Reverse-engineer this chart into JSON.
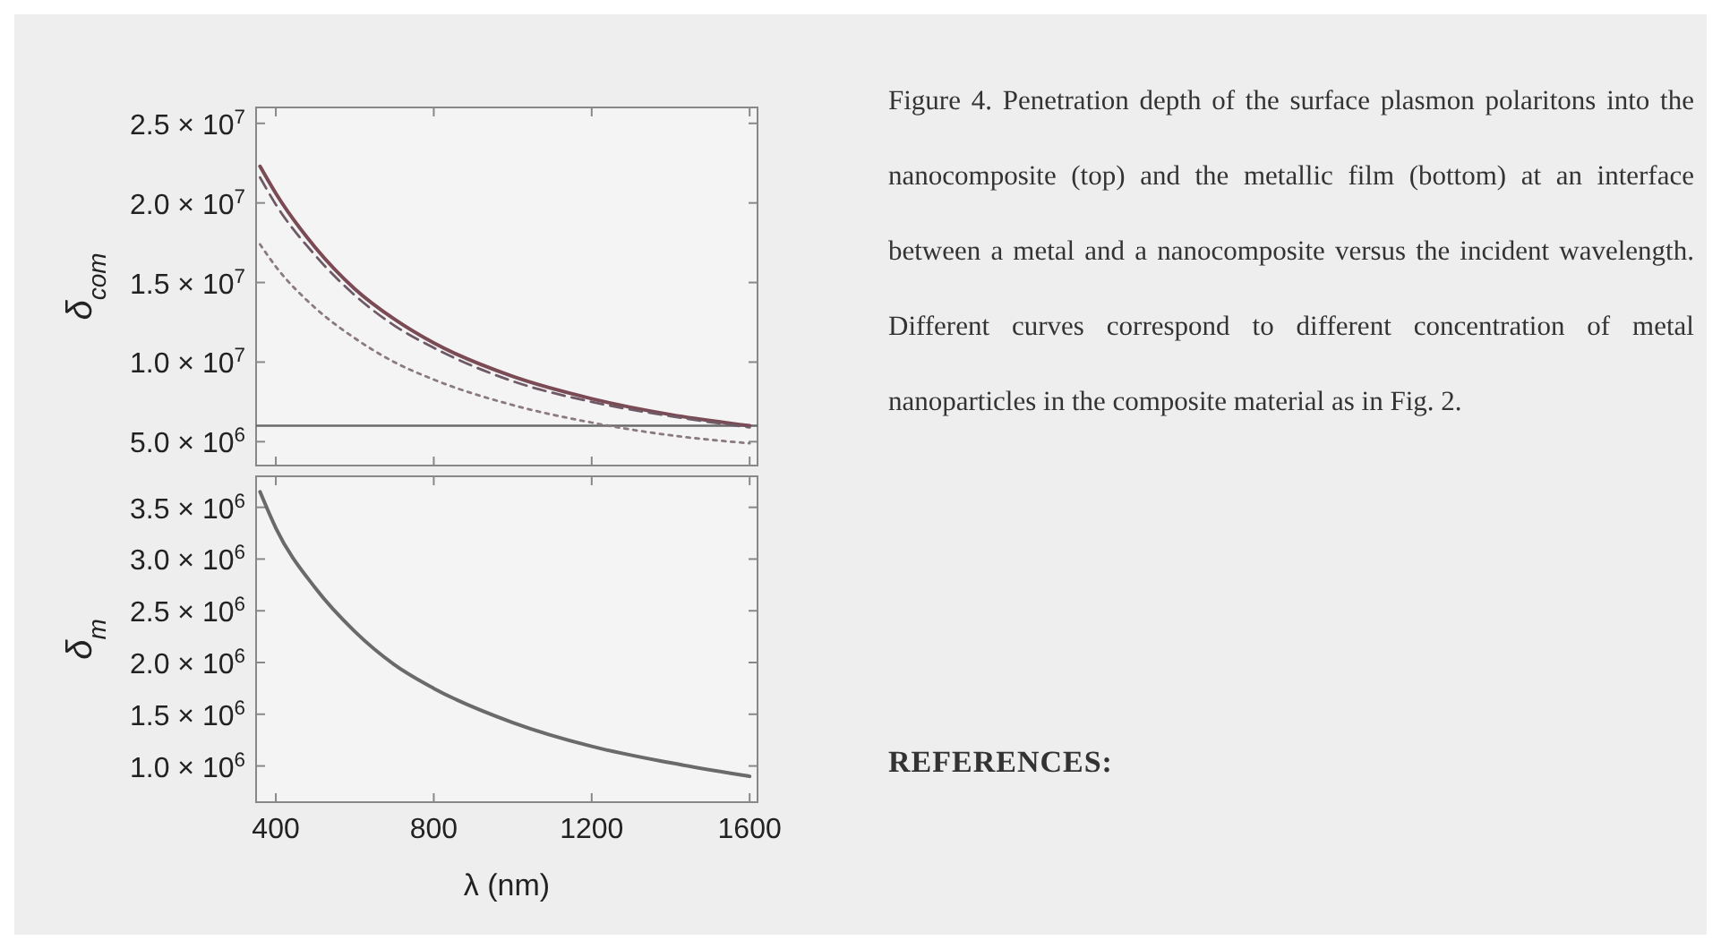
{
  "chart_data": [
    {
      "type": "line",
      "ylabel": "δ$_{com}$",
      "tick_labels": "y",
      "x": [
        360,
        400,
        500,
        600,
        700,
        800,
        1000,
        1200,
        1400,
        1600
      ],
      "xlim": [
        350,
        1620
      ],
      "xticks": [
        400,
        800,
        1200,
        1600
      ],
      "ylim": [
        3500000,
        26000000
      ],
      "yticks": [
        {
          "value": 5000000,
          "label": "5.0 × 10$^{6}$"
        },
        {
          "value": 10000000,
          "label": "1.0 × 10$^{7}$"
        },
        {
          "value": 15000000,
          "label": "1.5 × 10$^{7}$"
        },
        {
          "value": 20000000,
          "label": "2.0 × 10$^{7}$"
        },
        {
          "value": 25000000,
          "label": "2.5 × 10$^{7}$"
        }
      ],
      "series": [
        {
          "color": "#7a4a55",
          "line_style": "solid",
          "values": [
            22300000,
            20600000,
            17200000,
            14600000,
            12700000,
            11200000,
            9100000,
            7700000,
            6700000,
            6000000
          ]
        },
        {
          "color": "#6e5a66",
          "line_style": "dashed",
          "values": [
            21600000,
            19900000,
            16700000,
            14200000,
            12300000,
            10900000,
            8800000,
            7500000,
            6600000,
            5900000
          ]
        },
        {
          "color": "#8a7a80",
          "line_style": "dotted",
          "values": [
            17400000,
            16000000,
            13400000,
            11500000,
            10000000,
            8900000,
            7300000,
            6200000,
            5400000,
            4900000
          ]
        }
      ],
      "ref_lines": [
        {
          "axis": "y",
          "value": 6000000,
          "color": "#6a6a6a"
        }
      ]
    },
    {
      "type": "line",
      "xlabel": "λ (nm)",
      "ylabel": "δ$_{m}$",
      "x": [
        360,
        400,
        500,
        600,
        700,
        800,
        1000,
        1200,
        1400,
        1600
      ],
      "xlim": [
        350,
        1620
      ],
      "xticks": [
        400,
        800,
        1200,
        1600
      ],
      "ylim": [
        650000,
        3800000
      ],
      "yticks": [
        {
          "value": 1000000,
          "label": "1.0 × 10$^{6}$"
        },
        {
          "value": 1500000,
          "label": "1.5 × 10$^{6}$"
        },
        {
          "value": 2000000,
          "label": "2.0 × 10$^{6}$"
        },
        {
          "value": 2500000,
          "label": "2.5 × 10$^{6}$"
        },
        {
          "value": 3000000,
          "label": "3.0 × 10$^{6}$"
        },
        {
          "value": 3500000,
          "label": "3.5 × 10$^{6}$"
        }
      ],
      "series": [
        {
          "color": "#6a6a6a",
          "line_style": "solid",
          "values": [
            3650000,
            3300000,
            2720000,
            2300000,
            1980000,
            1750000,
            1420000,
            1190000,
            1030000,
            900000
          ]
        }
      ]
    },
    {
      "type": "other",
      "annotations": [
        "Figure 4. Penetration depth of the surface plasmon polaritons into the nanocomposite (top) and the metallic film (bottom) at an interface between a metal and a nanocomposite versus the incident wavelength. Different curves correspond to different concentration of metal nanoparticles in the composite material as in Fig. 2.",
        "REFERENCES:"
      ]
    }
  ]
}
